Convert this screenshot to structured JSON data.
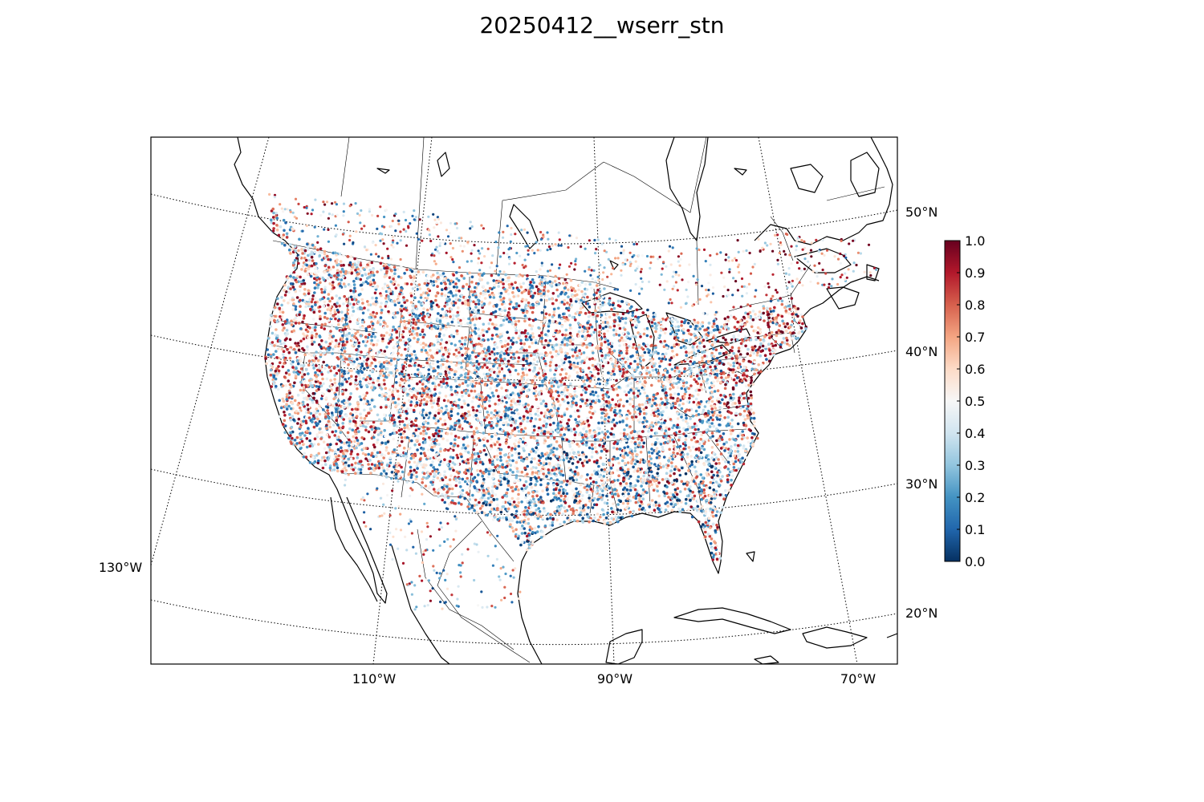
{
  "title": "20250412__wserr_stn",
  "map": {
    "meridian_labels": [
      "130°W",
      "110°W",
      "90°W",
      "70°W"
    ],
    "parallel_labels": [
      "50°N",
      "40°N",
      "30°N",
      "20°N"
    ]
  },
  "colorbar": {
    "colormap": "RdBu_r",
    "range": [
      0.0,
      1.0
    ],
    "ticks": [
      "0.0",
      "0.1",
      "0.2",
      "0.3",
      "0.4",
      "0.5",
      "0.6",
      "0.7",
      "0.8",
      "0.9",
      "1.0"
    ],
    "stops": [
      "#053061",
      "#2166ac",
      "#4393c3",
      "#92c5de",
      "#d1e5f0",
      "#f7f7f7",
      "#fddbc7",
      "#f4a582",
      "#d6604d",
      "#b2182b",
      "#67001f"
    ]
  },
  "stations": {
    "count": 9000,
    "note_value_range": [
      0.0,
      1.0
    ]
  }
}
